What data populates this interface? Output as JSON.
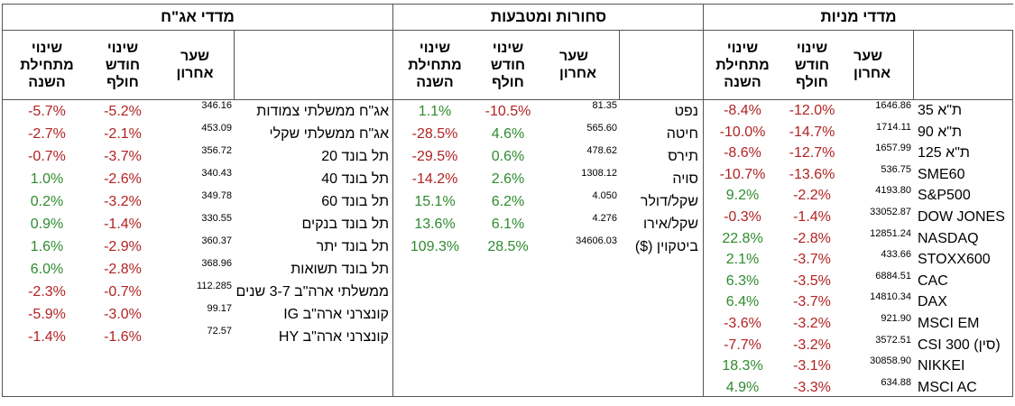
{
  "bonds": {
    "title": "מדדי אג\"ח",
    "headers": {
      "ytd": "שינוי\nמתחילת\nהשנה",
      "month": "שינוי\nחודש\nחולף",
      "last": "שער\nאחרון"
    },
    "rows": [
      {
        "ytd": "-5.7%",
        "month": "-5.2%",
        "last": "346.16",
        "name": "אג\"ח ממשלתי צמודות"
      },
      {
        "ytd": "-2.7%",
        "month": "-2.1%",
        "last": "453.09",
        "name": "אג\"ח ממשלתי שקלי"
      },
      {
        "ytd": "-0.7%",
        "month": "-3.7%",
        "last": "356.72",
        "name": "תל בונד 20"
      },
      {
        "ytd": "1.0%",
        "month": "-2.6%",
        "last": "340.43",
        "name": "תל בונד 40"
      },
      {
        "ytd": "0.2%",
        "month": "-3.2%",
        "last": "349.78",
        "name": "תל בונד 60"
      },
      {
        "ytd": "0.9%",
        "month": "-1.4%",
        "last": "330.55",
        "name": "תל בונד בנקים"
      },
      {
        "ytd": "1.6%",
        "month": "-2.9%",
        "last": "360.37",
        "name": "תל בונד יתר"
      },
      {
        "ytd": "6.0%",
        "month": "-2.8%",
        "last": "368.96",
        "name": "תל בונד תשואות"
      },
      {
        "ytd": "-2.3%",
        "month": "-0.7%",
        "last": "112.285",
        "name": "ממשלתי ארה\"ב 3-7 שנים"
      },
      {
        "ytd": "-5.9%",
        "month": "-3.0%",
        "last": "99.17",
        "name": "קונצרני ארה\"ב IG"
      },
      {
        "ytd": "-1.4%",
        "month": "-1.6%",
        "last": "72.57",
        "name": "קונצרני ארה\"ב HY"
      }
    ]
  },
  "commodities": {
    "title": "סחורות ומטבעות",
    "headers": {
      "ytd": "שינוי\nמתחילת\nהשנה",
      "month": "שינוי\nחודש\nחולף",
      "last": "שער\nאחרון"
    },
    "rows": [
      {
        "ytd": "1.1%",
        "month": "-10.5%",
        "last": "81.35",
        "name": "נפט"
      },
      {
        "ytd": "-28.5%",
        "month": "4.6%",
        "last": "565.60",
        "name": "חיטה"
      },
      {
        "ytd": "-29.5%",
        "month": "0.6%",
        "last": "478.62",
        "name": "תירס"
      },
      {
        "ytd": "-14.2%",
        "month": "2.6%",
        "last": "1308.12",
        "name": "סויה"
      },
      {
        "ytd": "15.1%",
        "month": "6.2%",
        "last": "4.050",
        "name": "שקל/דולר"
      },
      {
        "ytd": "13.6%",
        "month": "6.1%",
        "last": "4.276",
        "name": "שקל/אירו"
      },
      {
        "ytd": "109.3%",
        "month": "28.5%",
        "last": "34606.03",
        "name": "ביטקוין ($)"
      }
    ]
  },
  "stocks": {
    "title": "מדדי מניות",
    "headers": {
      "ytd": "שינוי\nמתחילת\nהשנה",
      "month": "שינוי\nחודש\nחולף",
      "last": "שער\nאחרון"
    },
    "rows": [
      {
        "ytd": "-8.4%",
        "month": "-12.0%",
        "last": "1646.86",
        "name": "ת\"א 35"
      },
      {
        "ytd": "-10.0%",
        "month": "-14.7%",
        "last": "1714.11",
        "name": "ת\"א 90"
      },
      {
        "ytd": "-8.6%",
        "month": "-12.7%",
        "last": "1657.99",
        "name": "ת\"א 125"
      },
      {
        "ytd": "-10.7%",
        "month": "-13.6%",
        "last": "536.75",
        "name": "SME60"
      },
      {
        "ytd": "9.2%",
        "month": "-2.2%",
        "last": "4193.80",
        "name": "S&P500"
      },
      {
        "ytd": "-0.3%",
        "month": "-1.4%",
        "last": "33052.87",
        "name": "DOW JONES"
      },
      {
        "ytd": "22.8%",
        "month": "-2.8%",
        "last": "12851.24",
        "name": "NASDAQ"
      },
      {
        "ytd": "2.1%",
        "month": "-3.7%",
        "last": "433.66",
        "name": "STOXX600"
      },
      {
        "ytd": "6.3%",
        "month": "-3.5%",
        "last": "6884.51",
        "name": "CAC"
      },
      {
        "ytd": "6.4%",
        "month": "-3.7%",
        "last": "14810.34",
        "name": "DAX"
      },
      {
        "ytd": "-3.6%",
        "month": "-3.2%",
        "last": "921.90",
        "name": "MSCI EM"
      },
      {
        "ytd": "-7.7%",
        "month": "-3.2%",
        "last": "3572.51",
        "name": "CSI 300 (סין)"
      },
      {
        "ytd": "18.3%",
        "month": "-3.1%",
        "last": "30858.90",
        "name": "NIKKEI"
      },
      {
        "ytd": "4.9%",
        "month": "-3.3%",
        "last": "634.88",
        "name": "MSCI AC"
      }
    ]
  },
  "colors": {
    "positive": "#2e8b2e",
    "negative": "#b22222",
    "border": "#555555"
  }
}
